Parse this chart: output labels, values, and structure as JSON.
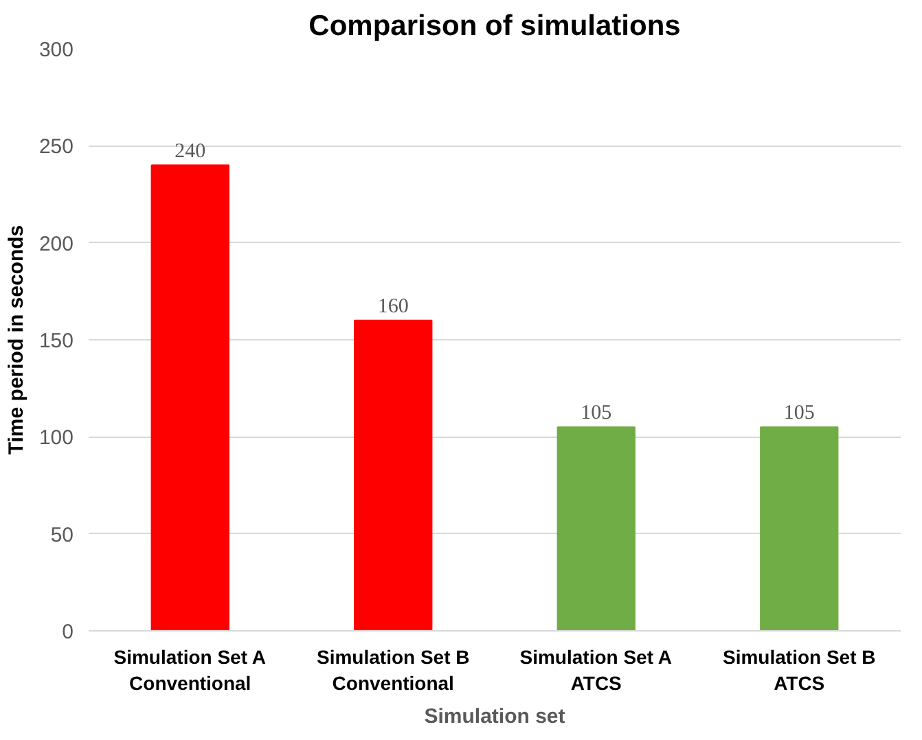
{
  "chart_data": {
    "type": "bar",
    "title": "Comparison of simulations",
    "xlabel": "Simulation set",
    "ylabel": "Time period in seconds",
    "categories": [
      "Simulation Set A\nConventional",
      "Simulation Set B\nConventional",
      "Simulation Set A\nATCS",
      "Simulation Set B\nATCS"
    ],
    "values": [
      240,
      160,
      105,
      105
    ],
    "colors": [
      "#ff0000",
      "#ff0000",
      "#70ad47",
      "#70ad47"
    ],
    "ylim": [
      0,
      300
    ],
    "yticks": [
      0,
      50,
      100,
      150,
      200,
      250,
      300
    ],
    "grid": "y",
    "data_labels": true
  }
}
